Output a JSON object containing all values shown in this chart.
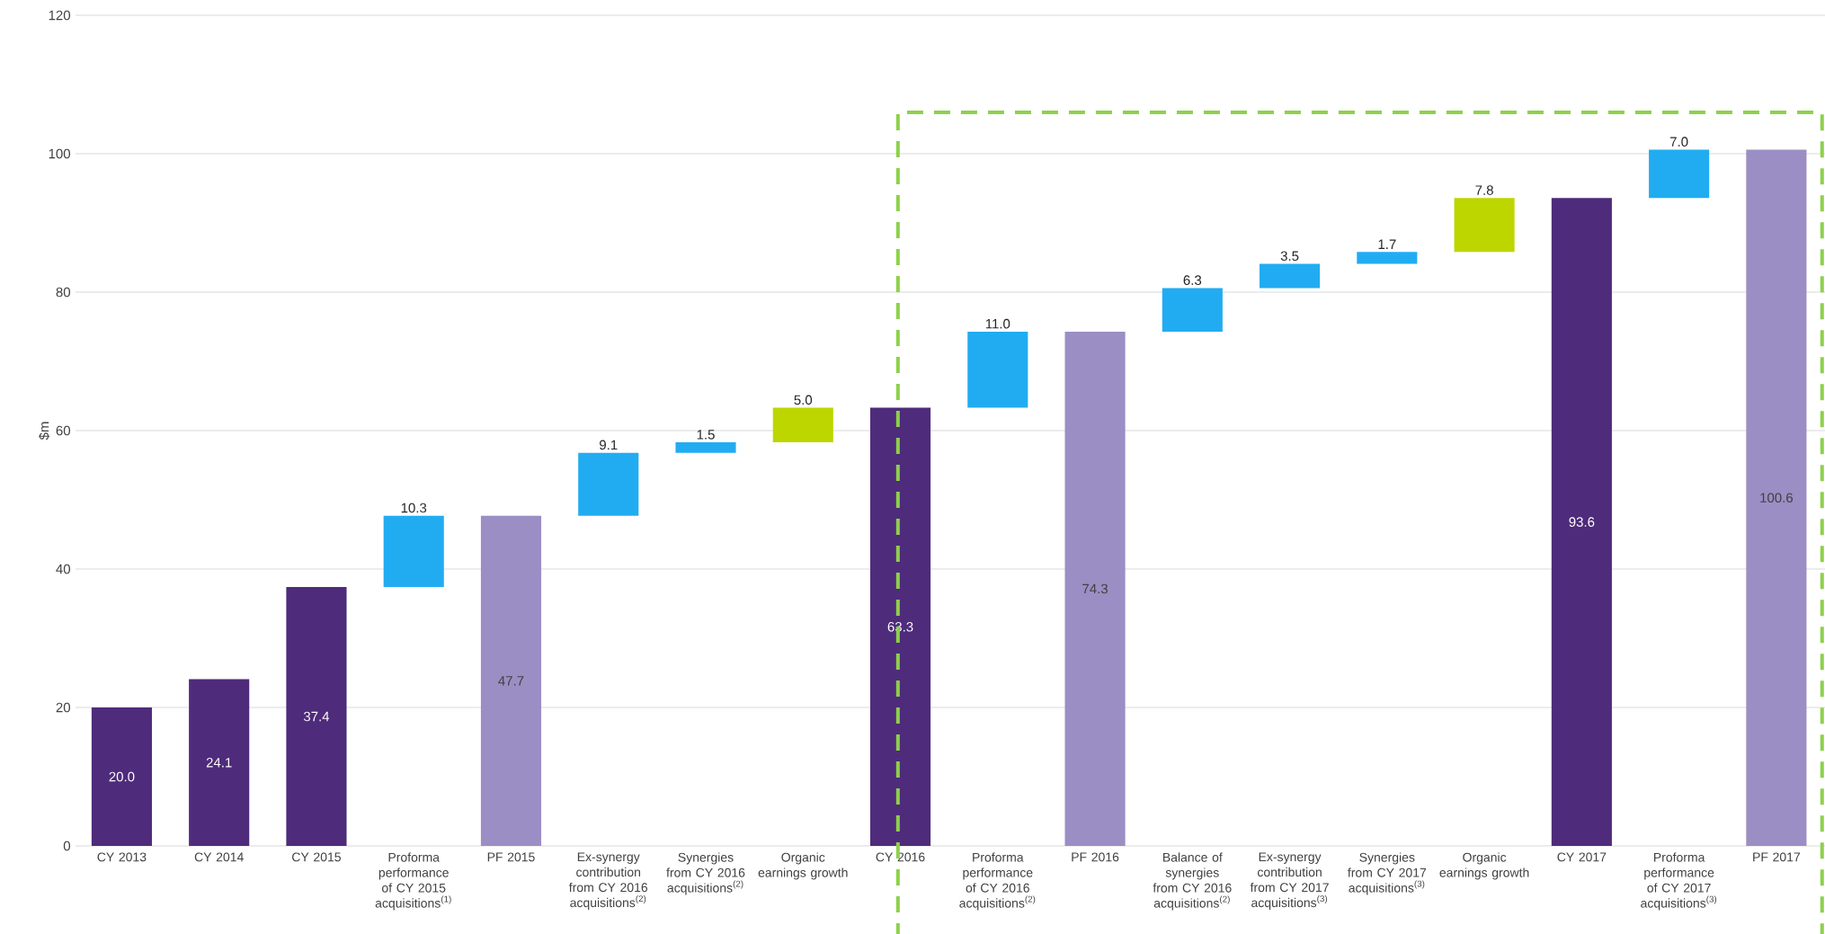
{
  "chart_data": {
    "type": "bar",
    "ylabel": "$m",
    "categories": [
      "CY 2013",
      "CY 2014",
      "CY 2015",
      "Proforma performance of CY 2015 acquisitions$^{(1)}$",
      "PF 2015",
      "Ex-synergy contribution from CY 2016 acquisitions$^{(2)}$",
      "Synergies from CY 2016 acquisitions$^{(2)}$",
      "Organic earnings growth",
      "CY 2016",
      "Proforma performance of CY 2016 acquisitions$^{(2)}$",
      "PF 2016",
      "Balance of synergies  from CY 2016 acquisitions$^{(2)}$",
      "Ex-synergy contribution from CY 2017 acquisitions$^{(3)}$",
      "Synergies from CY 2017 acquisitions$^{(3)}$",
      "Organic earnings growth",
      "CY 2017",
      "Proforma performance of CY 2017 acquisitions$^{(3)}$",
      "PF 2017"
    ],
    "values": [
      20.0,
      24.1,
      37.4,
      10.3,
      47.7,
      9.1,
      1.5,
      5.0,
      63.3,
      11.0,
      74.3,
      6.3,
      3.5,
      1.7,
      7.8,
      93.6,
      7.0,
      100.6
    ],
    "base": [
      0,
      0,
      0,
      37.4,
      0,
      47.7,
      56.8,
      58.3,
      0,
      63.3,
      0,
      74.3,
      80.6,
      84.1,
      85.8,
      0,
      93.6,
      0
    ],
    "colors": [
      "#4f2b7b",
      "#4f2b7b",
      "#4f2b7b",
      "#21acf2",
      "#9b8ec4",
      "#21acf2",
      "#21acf2",
      "#bdd600",
      "#4f2b7b",
      "#21acf2",
      "#9b8ec4",
      "#21acf2",
      "#21acf2",
      "#21acf2",
      "#bdd600",
      "#4f2b7b",
      "#21acf2",
      "#9b8ec4"
    ],
    "value_labels": [
      "20.0",
      "24.1",
      "37.4",
      "10.3",
      "47.7",
      "9.1",
      "1.5",
      "5.0",
      "63.3",
      "11.0",
      "74.3",
      "6.3",
      "3.5",
      "1.7",
      "7.8",
      "93.6",
      "7.0",
      "100.6"
    ],
    "ylim": [
      0,
      120
    ],
    "yticks": [
      0,
      20,
      40,
      60,
      80,
      100,
      120
    ],
    "grid": "y"
  }
}
